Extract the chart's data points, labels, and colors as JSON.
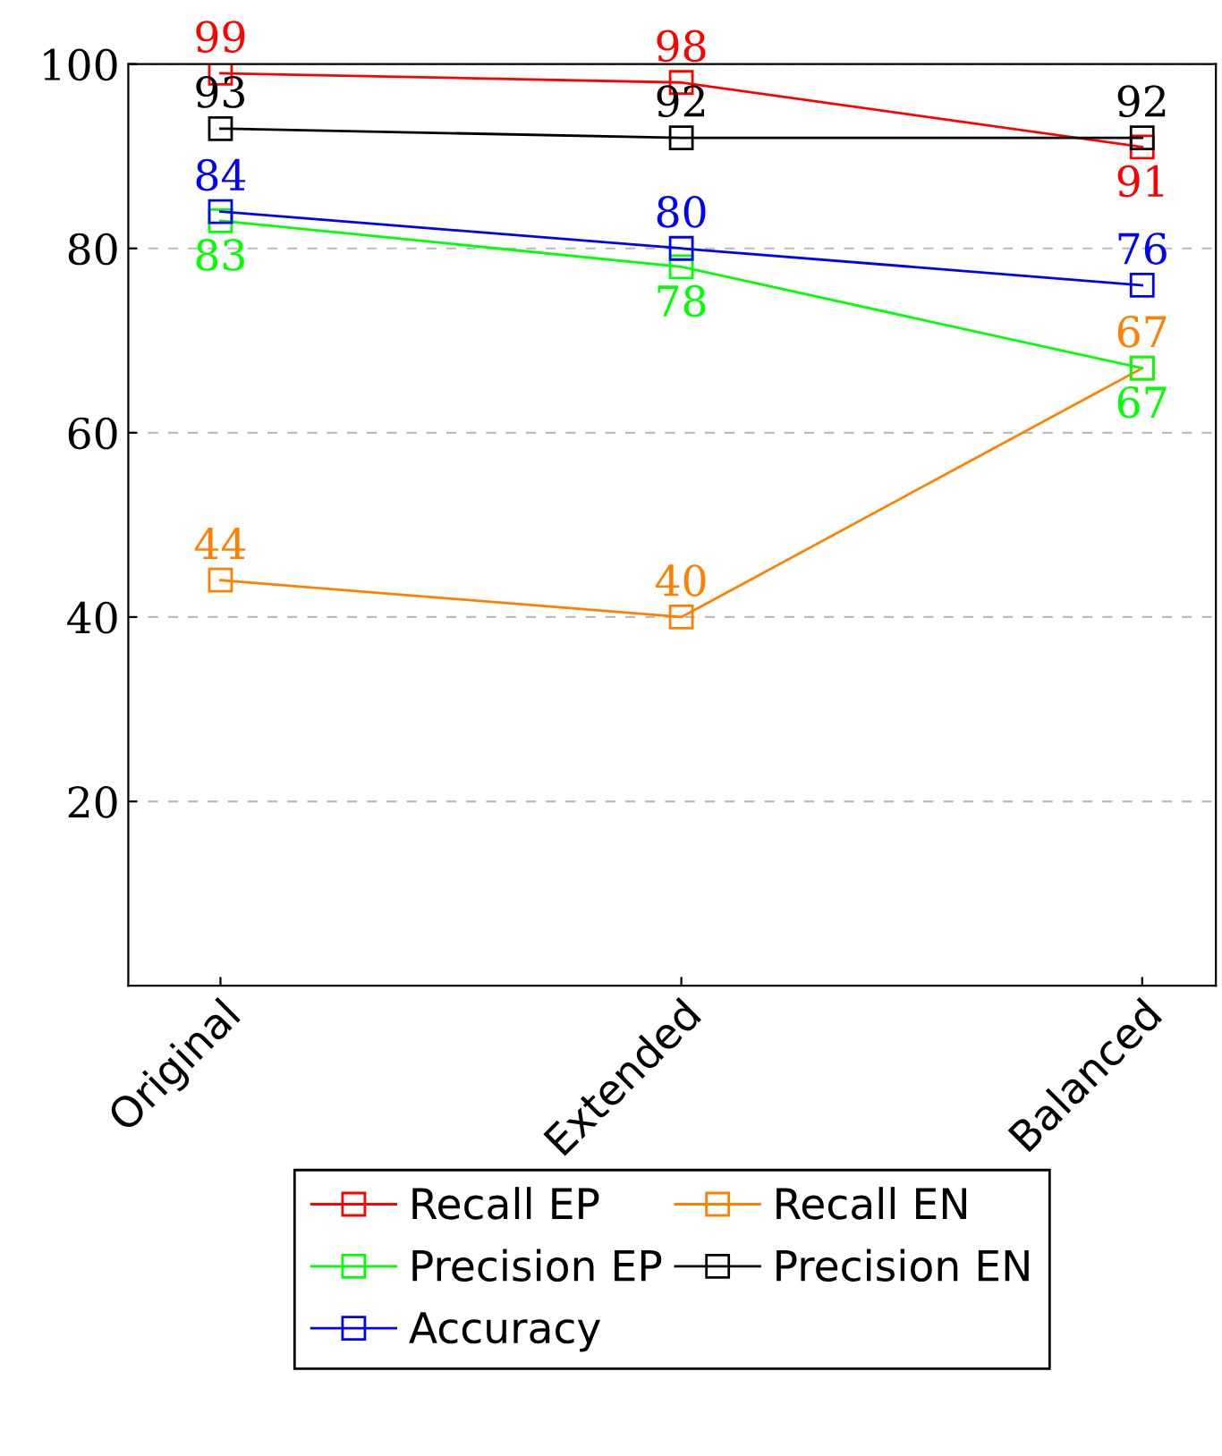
{
  "chart_data": {
    "type": "line",
    "categories": [
      "Original",
      "Extended",
      "Balanced"
    ],
    "series": [
      {
        "name": "Recall EP",
        "color": "#ff0000",
        "values": [
          99,
          98,
          91
        ]
      },
      {
        "name": "Recall EN",
        "color": "#ff8000",
        "values": [
          44,
          40,
          67
        ]
      },
      {
        "name": "Precision EP",
        "color": "#00ff00",
        "values": [
          83,
          78,
          67
        ]
      },
      {
        "name": "Precision EN",
        "color": "#000000",
        "values": [
          93,
          92,
          92
        ]
      },
      {
        "name": "Accuracy",
        "color": "#0000ff",
        "values": [
          84,
          80,
          76
        ]
      }
    ],
    "ylim": [
      0,
      100
    ],
    "yticks": [
      20,
      40,
      60,
      80,
      100
    ],
    "grid": "y",
    "legend": "bottom",
    "marker": "square",
    "line_style": "solid",
    "data_labels": true
  }
}
